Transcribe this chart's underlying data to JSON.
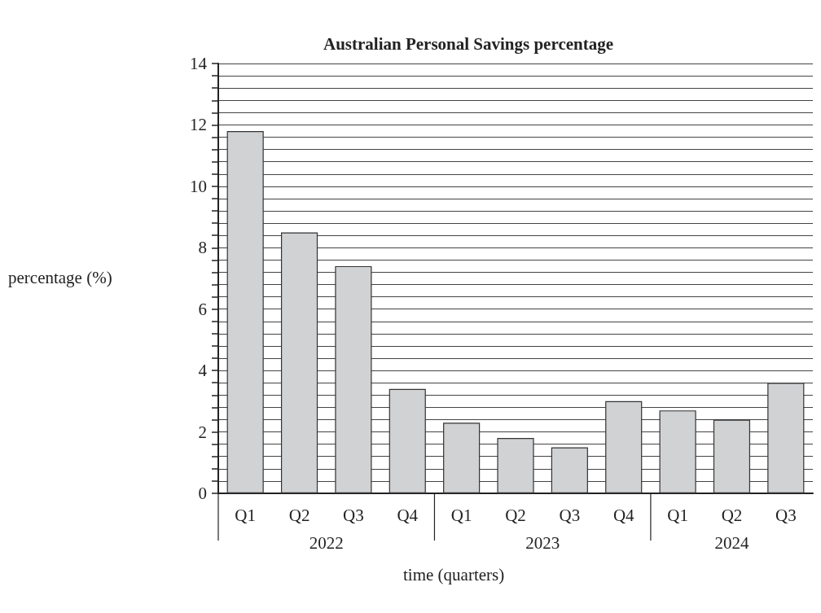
{
  "chart_data": {
    "type": "bar",
    "title": "Australian Personal Savings percentage",
    "xlabel": "time (quarters)",
    "ylabel": "percentage (%)",
    "categories": [
      "Q1",
      "Q2",
      "Q3",
      "Q4",
      "Q1",
      "Q2",
      "Q3",
      "Q4",
      "Q1",
      "Q2",
      "Q3"
    ],
    "values": [
      11.8,
      8.5,
      7.4,
      3.4,
      2.3,
      1.8,
      1.5,
      3.0,
      2.7,
      2.4,
      3.6
    ],
    "color": "#d1d2d4",
    "annotations": [
      "2022",
      "2023",
      "2024"
    ],
    "ylim": [
      0,
      14
    ],
    "yticks": [
      0,
      {
        "value": 0.4,
        "label": null
      },
      {
        "value": 0.8,
        "label": null
      },
      {
        "value": 1.2,
        "label": null
      },
      {
        "value": 1.6,
        "label": null
      },
      2,
      {
        "value": 2.4,
        "label": null
      },
      {
        "value": 2.8,
        "label": null
      },
      {
        "value": 3.2,
        "label": null
      },
      {
        "value": 3.6,
        "label": null
      },
      4,
      {
        "value": 4.4,
        "label": null
      },
      {
        "value": 4.8,
        "label": null
      },
      {
        "value": 5.2,
        "label": null
      },
      {
        "value": 5.6,
        "label": null
      },
      6,
      {
        "value": 6.4,
        "label": null
      },
      {
        "value": 6.8,
        "label": null
      },
      {
        "value": 7.2,
        "label": null
      },
      {
        "value": 7.6,
        "label": null
      },
      8,
      {
        "value": 8.4,
        "label": null
      },
      {
        "value": 8.8,
        "label": null
      },
      {
        "value": 9.2,
        "label": null
      },
      {
        "value": 9.6,
        "label": null
      },
      10,
      {
        "value": 10.4,
        "label": null
      },
      {
        "value": 10.8,
        "label": null
      },
      {
        "value": 11.2,
        "label": null
      },
      {
        "value": 11.6,
        "label": null
      },
      12,
      {
        "value": 12.4,
        "label": null
      },
      {
        "value": 12.8,
        "label": null
      },
      {
        "value": 13.2,
        "label": null
      },
      {
        "value": 13.6,
        "label": null
      },
      14
    ],
    "grid": true
  }
}
